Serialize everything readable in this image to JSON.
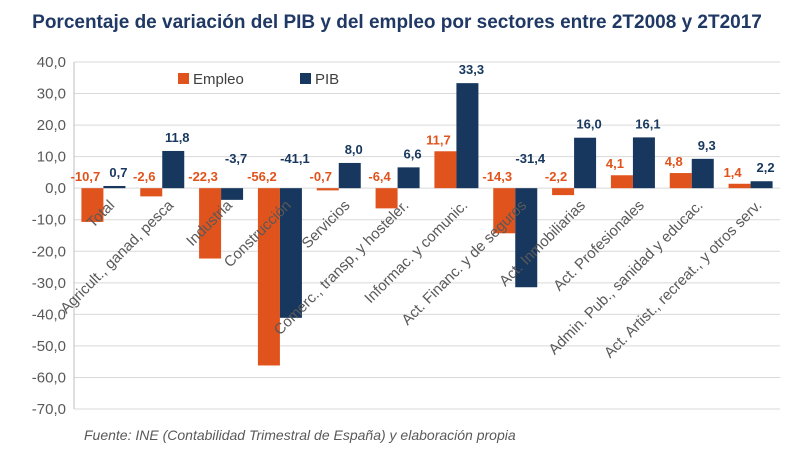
{
  "chart_data": {
    "type": "bar",
    "title": "Porcentaje de variación del PIB y del empleo por sectores entre 2T2008 y 2T2017",
    "categories": [
      "Total",
      "Agricult., ganad, pesca",
      "Industria",
      "Construcción",
      "Servicios",
      "Comerc., transp, y hosteler.",
      "Informac. y comunic.",
      "Act. Financ. y de seguros",
      "Act. Inmobiliarias",
      "Act. Profesionales",
      "Admin. Pub., sanidad y educac.",
      "Act. Artist., recreat., y otros serv."
    ],
    "series": [
      {
        "name": "Empleo",
        "color": "#e0531c",
        "values": [
          -10.7,
          -2.6,
          -22.3,
          -56.2,
          -0.7,
          -6.4,
          11.7,
          -14.3,
          -2.2,
          4.1,
          4.8,
          1.4
        ],
        "labels": [
          "-10,7",
          "-2,6",
          "-22,3",
          "-56,2",
          "-0,7",
          "-6,4",
          "11,7",
          "-14,3",
          "-2,2",
          "4,1",
          "4,8",
          "1,4"
        ]
      },
      {
        "name": "PIB",
        "color": "#17375e",
        "values": [
          0.7,
          11.8,
          -3.7,
          -41.1,
          8.0,
          6.6,
          33.3,
          -31.4,
          16.0,
          16.1,
          9.3,
          2.2
        ],
        "labels": [
          "0,7",
          "11,8",
          "-3,7",
          "-41,1",
          "8,0",
          "6,6",
          "33,3",
          "-31,4",
          "16,0",
          "16,1",
          "9,3",
          "2,2"
        ]
      }
    ],
    "y_ticks": [
      "40,0",
      "30,0",
      "20,0",
      "10,0",
      "0,0",
      "-10,0",
      "-20,0",
      "-30,0",
      "-40,0",
      "-50,0",
      "-60,0",
      "-70,0"
    ],
    "ylim": [
      -70,
      40
    ],
    "xlabel": "",
    "ylabel": "",
    "legend": "top-left",
    "grid": true,
    "source": "Fuente: INE (Contabilidad Trimestral de España) y elaboración propia"
  }
}
